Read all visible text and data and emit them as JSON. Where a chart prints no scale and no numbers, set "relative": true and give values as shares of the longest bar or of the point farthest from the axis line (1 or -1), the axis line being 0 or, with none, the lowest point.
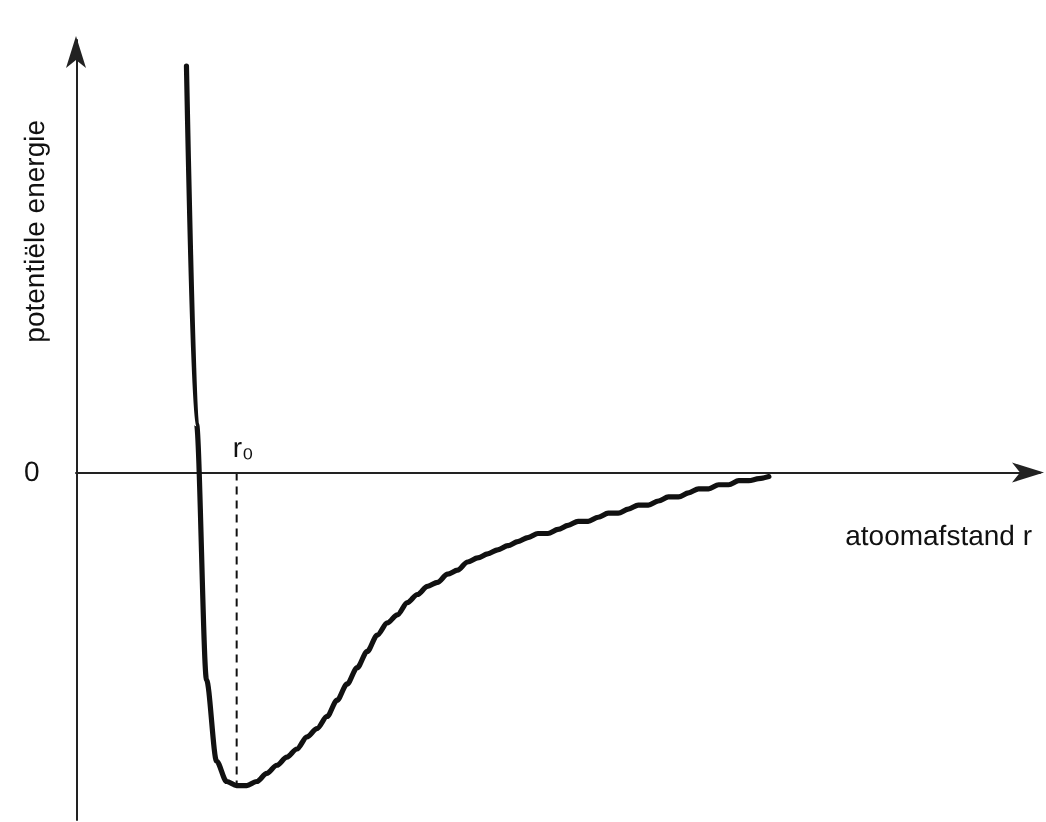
{
  "chart_data": {
    "type": "line",
    "relative": true,
    "xlabel": "atoomafstand r",
    "ylabel": "potentiële energie",
    "annotations": [
      "0",
      {
        "text": "r₀",
        "y": -0.77
      }
    ],
    "categories": [
      null,
      null,
      null,
      null,
      null,
      null,
      null,
      null,
      null,
      null,
      null,
      null,
      null,
      null,
      null,
      null,
      null,
      null,
      null,
      null,
      null,
      null,
      null,
      null,
      null,
      null,
      null,
      null,
      null,
      null,
      null,
      null,
      null,
      null,
      null,
      null,
      null,
      null,
      null,
      null,
      null,
      null,
      null,
      null,
      null,
      null,
      null,
      null,
      null,
      null,
      null,
      null,
      null,
      null,
      null,
      null,
      null,
      null,
      null,
      null,
      null,
      null,
      null,
      null,
      null,
      null,
      null,
      null,
      null,
      null,
      null,
      null,
      null,
      null,
      null,
      null,
      null,
      null,
      null,
      null,
      null,
      null,
      null,
      null,
      null,
      null,
      null,
      null,
      null,
      null,
      null,
      null,
      null,
      null,
      null,
      null,
      null
    ],
    "series": [
      {
        "color": "#111111",
        "values": [
          null,
          null,
          null,
          null,
          null,
          null,
          null,
          null,
          null,
          null,
          null,
          1,
          0.12,
          -0.51,
          -0.71,
          -0.76,
          -0.77,
          -0.77,
          -0.76,
          -0.74,
          -0.72,
          -0.7,
          -0.68,
          -0.65,
          -0.63,
          -0.6,
          -0.56,
          -0.52,
          -0.48,
          -0.44,
          -0.4,
          -0.37,
          -0.35,
          -0.32,
          -0.3,
          -0.28,
          -0.27,
          -0.25,
          -0.24,
          -0.22,
          -0.21,
          -0.2,
          -0.19,
          -0.18,
          -0.17,
          -0.16,
          -0.15,
          -0.15,
          -0.14,
          -0.13,
          -0.12,
          -0.12,
          -0.11,
          -0.1,
          -0.1,
          -0.09,
          -0.08,
          -0.08,
          -0.07,
          -0.06,
          -0.06,
          -0.05,
          -0.04,
          -0.04,
          -0.03,
          -0.03,
          -0.02,
          -0.02,
          -0.015,
          -0.01,
          null,
          null,
          null,
          null,
          null,
          null,
          null,
          null,
          null,
          null,
          null,
          null,
          null,
          null,
          null,
          null,
          null,
          null,
          null,
          null,
          null,
          null,
          null,
          null,
          null,
          null,
          null
        ]
      }
    ],
    "marker": "none"
  }
}
